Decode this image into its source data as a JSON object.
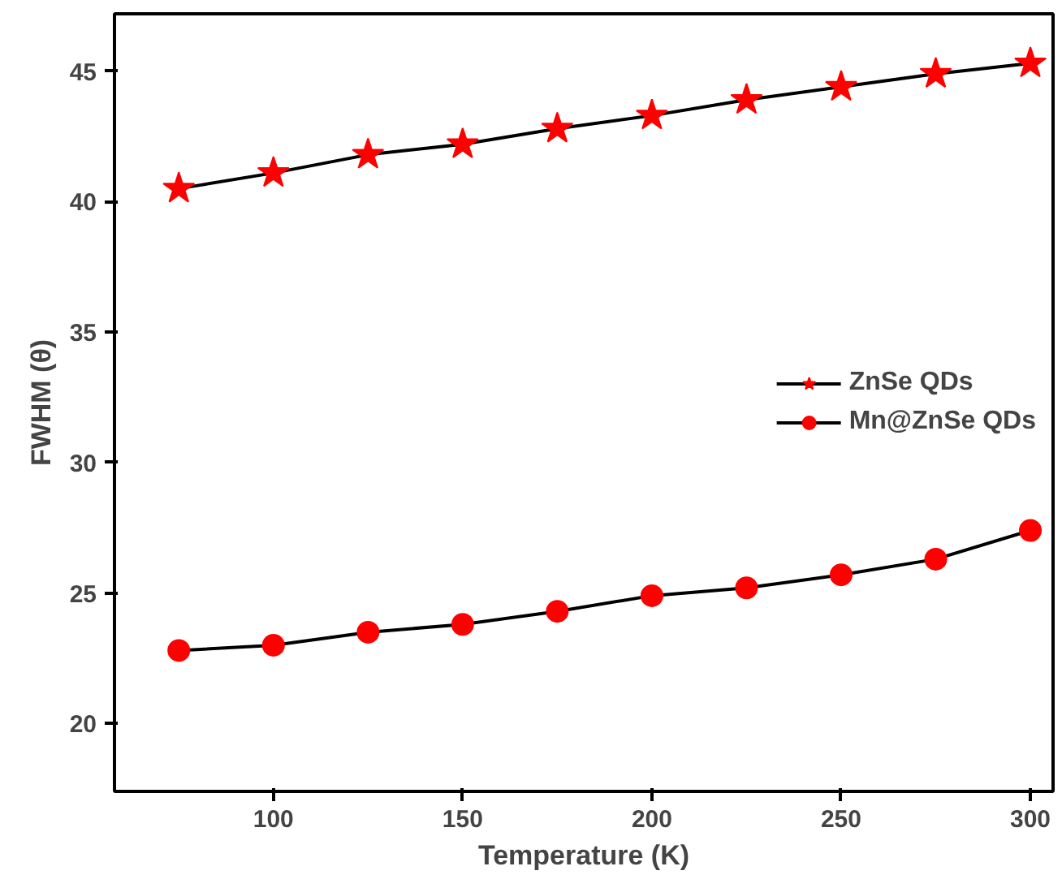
{
  "chart_data": {
    "type": "line",
    "xlabel": "Temperature (K)",
    "ylabel": "FWHM (θ)",
    "x": [
      75,
      100,
      125,
      150,
      175,
      200,
      225,
      250,
      275,
      300
    ],
    "series": [
      {
        "name": "ZnSe QDs",
        "color": "#ff0000",
        "marker": "star",
        "values": [
          40.5,
          41.1,
          41.8,
          42.2,
          42.8,
          43.3,
          43.9,
          44.4,
          44.9,
          45.3
        ]
      },
      {
        "name": "Mn@ZnSe QDs",
        "color": "#ff0000",
        "marker": "circle",
        "values": [
          22.8,
          23.0,
          23.5,
          23.8,
          24.3,
          24.9,
          25.2,
          25.7,
          26.3,
          27.4
        ]
      }
    ],
    "xlim": [
      58,
      306
    ],
    "ylim": [
      17.4,
      47.2
    ],
    "xticks": [
      100,
      150,
      200,
      250,
      300
    ],
    "yticks": [
      20,
      25,
      30,
      35,
      40,
      45
    ],
    "grid": false,
    "legend": "right",
    "line_style": "solid"
  }
}
